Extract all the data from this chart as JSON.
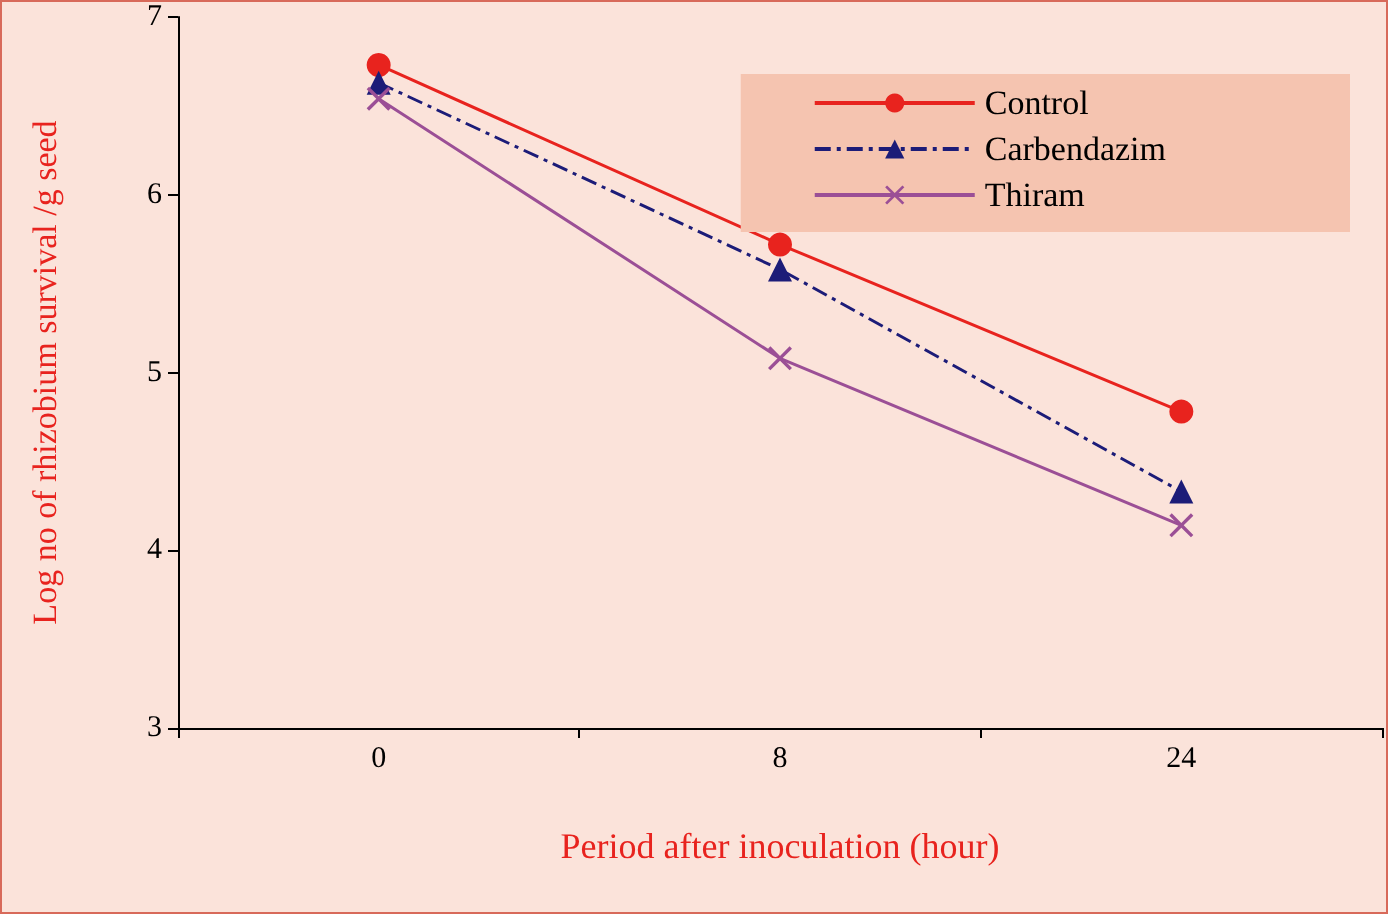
{
  "chart_data": {
    "type": "line",
    "xlabel": "Period after inoculation (hour)",
    "ylabel": "Log no of rhizobium survival /g seed",
    "categories": [
      "0",
      "8",
      "24"
    ],
    "series": [
      {
        "name": "Control",
        "color": "#e8231e",
        "values": [
          6.73,
          5.72,
          4.78
        ],
        "marker": "circle",
        "line_style": "solid"
      },
      {
        "name": "Carbendazim",
        "color": "#1c1c78",
        "values": [
          6.63,
          5.58,
          4.33
        ],
        "marker": "triangle",
        "line_style": "dashed"
      },
      {
        "name": "Thiram",
        "color": "#9b4f96",
        "values": [
          6.54,
          5.08,
          4.14
        ],
        "marker": "cross",
        "line_style": "solid"
      }
    ],
    "ylim": [
      3,
      7
    ],
    "yticks": [
      3,
      4,
      5,
      6,
      7
    ],
    "grid": false,
    "legend": "top right"
  }
}
